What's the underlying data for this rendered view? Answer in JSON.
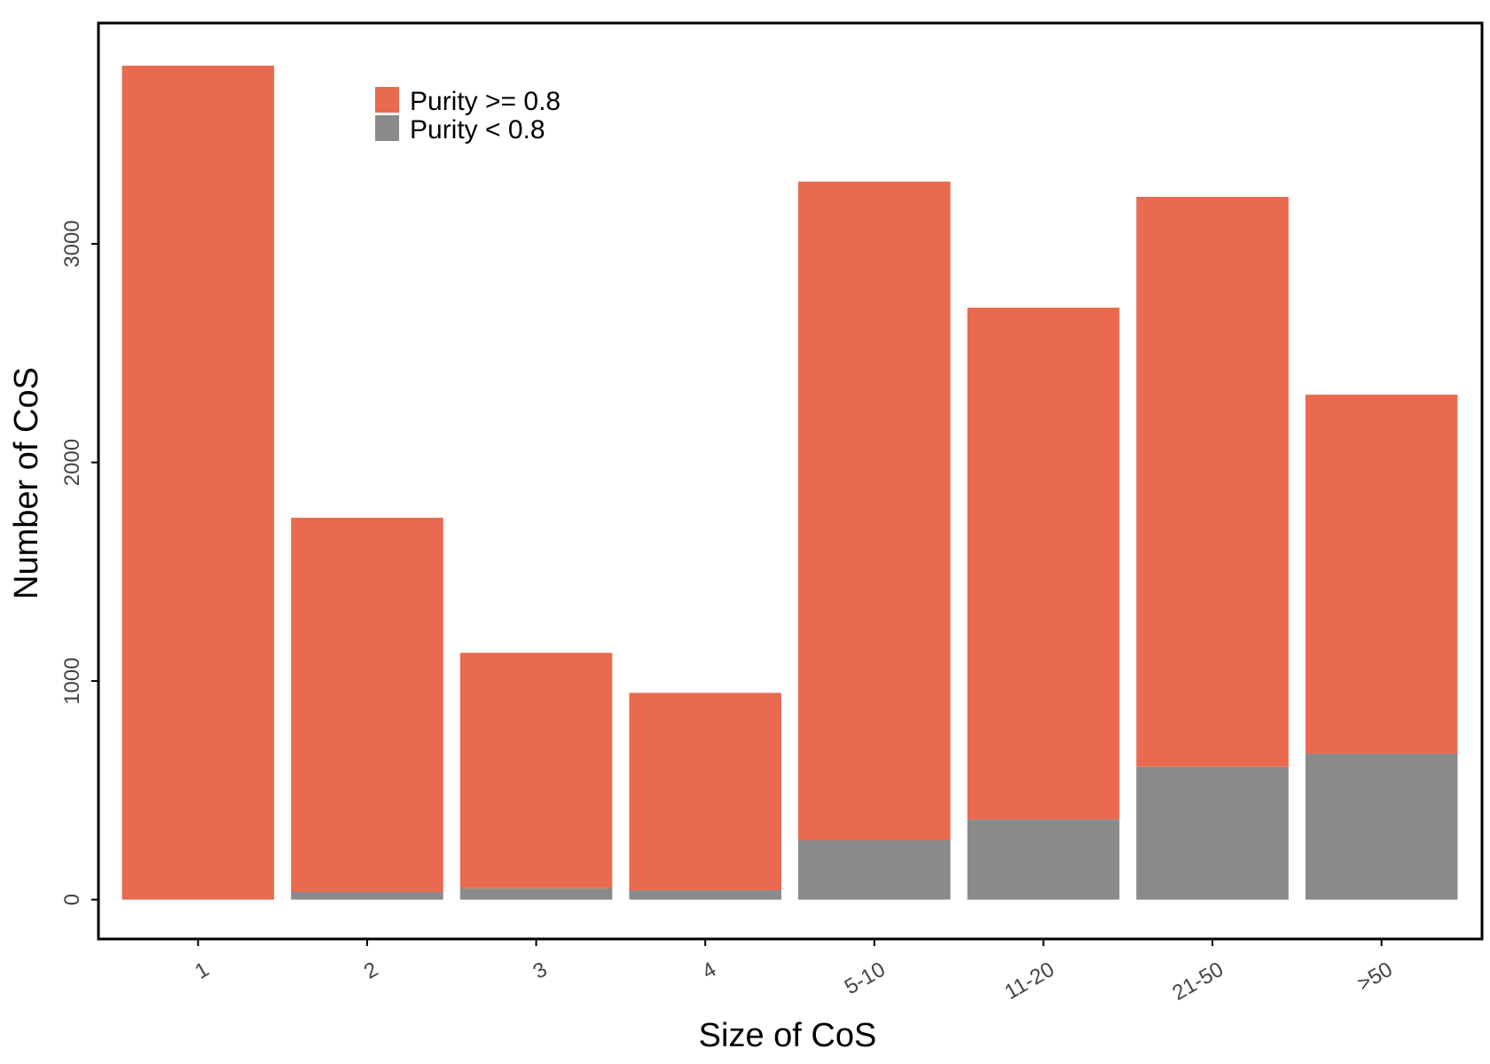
{
  "chart_data": {
    "type": "bar",
    "stacked": true,
    "categories": [
      "1",
      "2",
      "3",
      "4",
      "5-10",
      "11-20",
      "21-50",
      ">50"
    ],
    "series": [
      {
        "name": "Purity < 0.8",
        "color": "#8a8a8a",
        "values": [
          0,
          35,
          52,
          43,
          272,
          367,
          608,
          668
        ]
      },
      {
        "name": "Purity >= 0.8",
        "color": "#e96a4f",
        "values": [
          3815,
          1712,
          1077,
          903,
          3013,
          2341,
          2607,
          1642
        ]
      }
    ],
    "xlabel": "Size of CoS",
    "ylabel": "Number of CoS",
    "yticks": [
      0,
      1000,
      2000,
      3000
    ],
    "ylim": [
      -180,
      4010
    ],
    "grid": false,
    "legend": {
      "position": "top-left",
      "entries": [
        {
          "label": "Purity >= 0.8",
          "color": "#e96a4f"
        },
        {
          "label": "Purity < 0.8",
          "color": "#8a8a8a"
        }
      ]
    },
    "x_tick_rotation": "rotated ~30 degrees"
  }
}
